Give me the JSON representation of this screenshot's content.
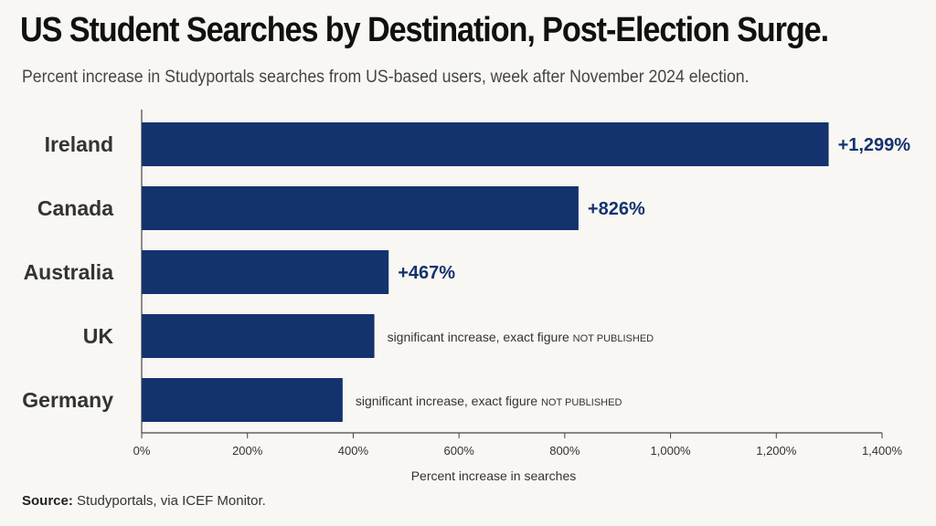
{
  "title": "US Student Searches by Destination, Post-Election Surge.",
  "subtitle": "Percent increase in Studyportals searches from US-based users, week after November 2024 election.",
  "source": {
    "label": "Source:",
    "text": " Studyportals, via ICEF Monitor."
  },
  "chart_data": {
    "type": "bar",
    "orientation": "horizontal",
    "categories": [
      "Ireland",
      "Canada",
      "Australia",
      "UK",
      "Germany"
    ],
    "values": [
      1299,
      826,
      467,
      440,
      380
    ],
    "value_labels": [
      "+1,299%",
      "+826%",
      "+467%",
      "",
      ""
    ],
    "notes": [
      null,
      null,
      null,
      {
        "text": "significant increase, exact figure ",
        "caps": "NOT PUBLISHED"
      },
      {
        "text": "significant increase, exact figure ",
        "caps": "NOT PUBLISHED"
      }
    ],
    "xlabel": "Percent increase in searches",
    "xlim": [
      0,
      1400
    ],
    "xticks": [
      0,
      200,
      400,
      600,
      800,
      1000,
      1200,
      1400
    ],
    "xtick_labels": [
      "0%",
      "200%",
      "400%",
      "600%",
      "800%",
      "1,000%",
      "1,200%",
      "1,400%"
    ],
    "grid": false,
    "bar_color": "#14326e"
  }
}
